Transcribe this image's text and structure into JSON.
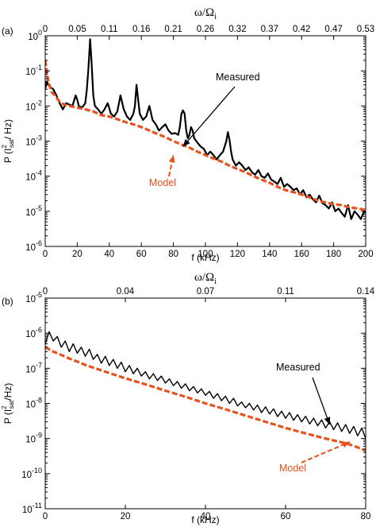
{
  "colors": {
    "measured": "#000000",
    "model": "#e8501c",
    "axis": "#000000"
  },
  "chart_data": [
    {
      "type": "line",
      "panel_label": "(a)",
      "xlabel": "f (kHz)",
      "xlim": [
        0,
        200
      ],
      "x_ticks": [
        "0",
        "20",
        "40",
        "60",
        "80",
        "100",
        "120",
        "140",
        "160",
        "180",
        "200"
      ],
      "top_axis_label": "ω/Ω",
      "top_axis_label_sub": "i",
      "top_ticks": [
        "0",
        "0.05",
        "0.11",
        "0.16",
        "0.21",
        "0.26",
        "0.32",
        "0.37",
        "0.42",
        "0.47",
        "0.53"
      ],
      "ylabel": "P (I",
      "ylabel_sub": "sat",
      "ylabel_sup": "2",
      "ylabel_end": "/ Hz)",
      "yscale": "log",
      "ylim_exp": [
        -6,
        0
      ],
      "y_ticks": [
        {
          "base": "10",
          "exp": "-6"
        },
        {
          "base": "10",
          "exp": "-5"
        },
        {
          "base": "10",
          "exp": "-4"
        },
        {
          "base": "10",
          "exp": "-3"
        },
        {
          "base": "10",
          "exp": "-2"
        },
        {
          "base": "10",
          "exp": "-1"
        },
        {
          "base": "10",
          "exp": "0"
        }
      ],
      "annotations": [
        {
          "text": "Measured",
          "color": "#000000",
          "arrow_to_x": 86,
          "arrow_to_y": 0.0007
        },
        {
          "text": "Model",
          "color": "#e8501c",
          "arrow_to_x": 80,
          "arrow_to_y": 0.0004
        }
      ],
      "series": [
        {
          "name": "Measured",
          "color": "#000000",
          "x": [
            0,
            1,
            2,
            3,
            5,
            7,
            9,
            11,
            13,
            15,
            17,
            19,
            20,
            21,
            23,
            25,
            26,
            27,
            28,
            29,
            30,
            31,
            33,
            35,
            37,
            39,
            41,
            43,
            45,
            47,
            49,
            51,
            53,
            55,
            56,
            57,
            58,
            59,
            61,
            63,
            65,
            67,
            69,
            71,
            73,
            75,
            77,
            79,
            81,
            83,
            84,
            85,
            86,
            87,
            88,
            89,
            90,
            91,
            92,
            93,
            95,
            97,
            99,
            101,
            103,
            105,
            107,
            109,
            111,
            113,
            114,
            115,
            116,
            117,
            119,
            121,
            123,
            125,
            127,
            129,
            131,
            133,
            135,
            137,
            139,
            141,
            143,
            145,
            147,
            149,
            151,
            153,
            155,
            157,
            159,
            161,
            163,
            165,
            167,
            169,
            171,
            173,
            175,
            177,
            179,
            181,
            183,
            185,
            187,
            189,
            191,
            193,
            195,
            197,
            199,
            200
          ],
          "y": [
            0.03,
            0.05,
            0.04,
            0.035,
            0.03,
            0.02,
            0.012,
            0.008,
            0.012,
            0.011,
            0.01,
            0.02,
            0.015,
            0.01,
            0.009,
            0.012,
            0.03,
            0.12,
            0.8,
            0.15,
            0.02,
            0.01,
            0.008,
            0.006,
            0.008,
            0.012,
            0.006,
            0.005,
            0.007,
            0.02,
            0.008,
            0.005,
            0.004,
            0.006,
            0.01,
            0.04,
            0.015,
            0.006,
            0.004,
            0.005,
            0.01,
            0.004,
            0.003,
            0.002,
            0.0025,
            0.003,
            0.002,
            0.0016,
            0.0017,
            0.0015,
            0.0025,
            0.006,
            0.0075,
            0.006,
            0.002,
            0.0012,
            0.0015,
            0.0025,
            0.002,
            0.0012,
            0.0009,
            0.0007,
            0.0006,
            0.0004,
            0.0005,
            0.0004,
            0.0003,
            0.0004,
            0.0005,
            0.001,
            0.0018,
            0.0011,
            0.0005,
            0.0003,
            0.0002,
            0.00025,
            0.0002,
            0.00015,
            0.00018,
            0.00013,
            0.00011,
            0.00015,
            0.0001,
            9e-05,
            0.00012,
            8e-05,
            7e-05,
            6e-05,
            9e-05,
            5e-05,
            6e-05,
            5e-05,
            4e-05,
            4.5e-05,
            3e-05,
            4e-05,
            2.5e-05,
            3e-05,
            2.2e-05,
            1.8e-05,
            2.8e-05,
            1.7e-05,
            1.5e-05,
            1.2e-05,
            1.8e-05,
            1e-05,
            1.2e-05,
            9e-06,
            7e-06,
            1.5e-05,
            6e-06,
            1e-05,
            8e-06,
            6e-06,
            1e-05,
            9e-06
          ]
        },
        {
          "name": "Model",
          "color": "#e8501c",
          "x": [
            0,
            1,
            2,
            4,
            6,
            8,
            10,
            12,
            15,
            20,
            25,
            30,
            35,
            40,
            45,
            50,
            55,
            60,
            65,
            70,
            75,
            80,
            85,
            90,
            95,
            100,
            105,
            110,
            115,
            120,
            125,
            130,
            135,
            140,
            145,
            150,
            155,
            160,
            165,
            170,
            175,
            180,
            185,
            190,
            195,
            200
          ],
          "y": [
            0.2,
            0.1,
            0.05,
            0.025,
            0.02,
            0.015,
            0.012,
            0.011,
            0.01,
            0.009,
            0.008,
            0.007,
            0.0055,
            0.005,
            0.0042,
            0.0035,
            0.003,
            0.0025,
            0.002,
            0.0016,
            0.0013,
            0.001,
            0.0008,
            0.00065,
            0.0005,
            0.0004,
            0.00032,
            0.00026,
            0.0002,
            0.00016,
            0.00013,
            0.0001,
            8e-05,
            6.5e-05,
            5e-05,
            4e-05,
            3.5e-05,
            3e-05,
            2.5e-05,
            2e-05,
            1.8e-05,
            1.6e-05,
            1.5e-05,
            1.3e-05,
            1.2e-05,
            1.1e-05
          ]
        }
      ]
    },
    {
      "type": "line",
      "panel_label": "(b)",
      "xlabel": "f (kHz)",
      "xlim": [
        0,
        80
      ],
      "x_ticks": [
        "0",
        "20",
        "40",
        "60",
        "80"
      ],
      "top_axis_label": "ω/Ω",
      "top_axis_label_sub": "i",
      "top_ticks": [
        "0",
        "0.04",
        "0.07",
        "0.11",
        "0.14"
      ],
      "ylabel": "P (I",
      "ylabel_sub": "sat",
      "ylabel_sup": "2",
      "ylabel_end": "/Hz)",
      "yscale": "log",
      "ylim_exp": [
        -11,
        -5
      ],
      "y_ticks": [
        {
          "base": "10",
          "exp": "-11"
        },
        {
          "base": "10",
          "exp": "-10"
        },
        {
          "base": "10",
          "exp": "-9"
        },
        {
          "base": "10",
          "exp": "-8"
        },
        {
          "base": "10",
          "exp": "-7"
        },
        {
          "base": "10",
          "exp": "-6"
        },
        {
          "base": "10",
          "exp": "-5"
        }
      ],
      "annotations": [
        {
          "text": "Measured",
          "color": "#000000",
          "arrow_to_x": 71,
          "arrow_to_y": 2.5e-09
        },
        {
          "text": "Model",
          "color": "#e8501c",
          "arrow_to_x": 76,
          "arrow_to_y": 8e-10
        }
      ],
      "series": [
        {
          "name": "Measured",
          "color": "#000000",
          "x": [
            0,
            1,
            2,
            3,
            4,
            5,
            6,
            7,
            8,
            9,
            10,
            11,
            12,
            13,
            14,
            15,
            16,
            17,
            18,
            19,
            20,
            21,
            22,
            23,
            24,
            25,
            26,
            27,
            28,
            29,
            30,
            31,
            32,
            33,
            34,
            35,
            36,
            37,
            38,
            39,
            40,
            41,
            42,
            43,
            44,
            45,
            46,
            47,
            48,
            49,
            50,
            51,
            52,
            53,
            54,
            55,
            56,
            57,
            58,
            59,
            60,
            61,
            62,
            63,
            64,
            65,
            66,
            67,
            68,
            69,
            70,
            71,
            72,
            73,
            74,
            75,
            76,
            77,
            78,
            79,
            80
          ],
          "y": [
            5e-07,
            1.1e-06,
            6e-07,
            8e-07,
            4e-07,
            6e-07,
            3e-07,
            5e-07,
            2.7e-07,
            4e-07,
            2.2e-07,
            3.5e-07,
            1.8e-07,
            2.5e-07,
            1.4e-07,
            2.2e-07,
            1.2e-07,
            1.8e-07,
            1e-07,
            1.5e-07,
            8e-08,
            1.2e-07,
            7e-08,
            1e-07,
            6e-08,
            8e-08,
            5e-08,
            7e-08,
            4.5e-08,
            6e-08,
            3.8e-08,
            5e-08,
            3.2e-08,
            4.2e-08,
            2.7e-08,
            3.6e-08,
            2.3e-08,
            3e-08,
            2e-08,
            2.6e-08,
            1.7e-08,
            2.2e-08,
            1.4e-08,
            1.9e-08,
            1.2e-08,
            1.6e-08,
            1e-08,
            1.4e-08,
            8.5e-09,
            1.1e-08,
            7.5e-09,
            1e-08,
            6.5e-09,
            9e-09,
            5.5e-09,
            8e-09,
            5e-09,
            7e-09,
            4.2e-09,
            6e-09,
            3.8e-09,
            5.5e-09,
            3.3e-09,
            4.8e-09,
            3e-09,
            4.3e-09,
            2.6e-09,
            3.8e-09,
            2.3e-09,
            3.4e-09,
            2e-09,
            3e-09,
            1.8e-09,
            2.8e-09,
            1.6e-09,
            2.5e-09,
            1.4e-09,
            2.2e-09,
            1.2e-09,
            2e-09,
            1e-09
          ]
        },
        {
          "name": "Model",
          "color": "#e8501c",
          "x": [
            0,
            2,
            4,
            6,
            8,
            10,
            15,
            20,
            25,
            30,
            35,
            40,
            45,
            50,
            55,
            60,
            65,
            70,
            72,
            74,
            76,
            78,
            80
          ],
          "y": [
            4e-07,
            3e-07,
            2.4e-07,
            1.9e-07,
            1.55e-07,
            1.25e-07,
            8e-08,
            5.2e-08,
            3.5e-08,
            2.3e-08,
            1.55e-08,
            1e-08,
            6.8e-09,
            4.5e-09,
            3e-09,
            2e-09,
            1.4e-09,
            1e-09,
            8.8e-10,
            7.8e-10,
            6.8e-10,
            5.6e-10,
            4.5e-10
          ]
        }
      ]
    }
  ]
}
